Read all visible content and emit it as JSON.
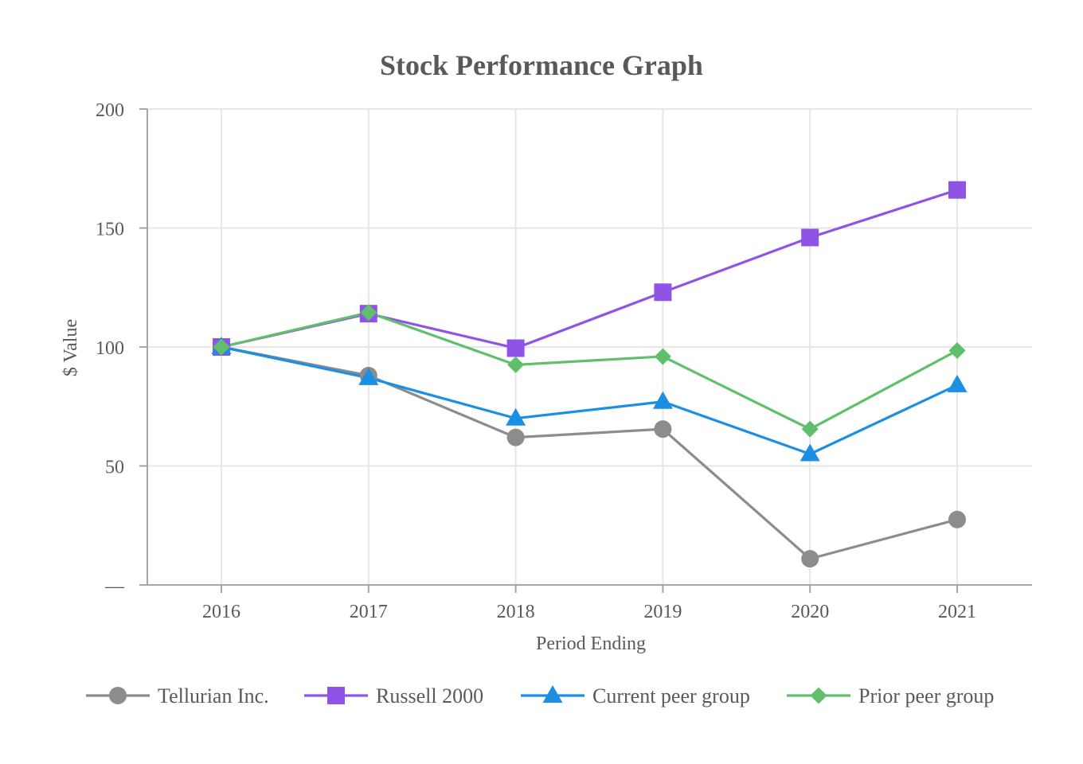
{
  "chart_data": {
    "type": "line",
    "title": "Stock Performance Graph",
    "xlabel": "Period Ending",
    "ylabel": "$ Value",
    "categories": [
      "2016",
      "2017",
      "2018",
      "2019",
      "2020",
      "2021"
    ],
    "y_ticks": [
      {
        "value": 0,
        "label": "—"
      },
      {
        "value": 50,
        "label": "50"
      },
      {
        "value": 100,
        "label": "100"
      },
      {
        "value": 150,
        "label": "150"
      },
      {
        "value": 200,
        "label": "200"
      }
    ],
    "ylim": [
      0,
      200
    ],
    "grid": true,
    "legend_position": "bottom",
    "series": [
      {
        "name": "Tellurian Inc.",
        "marker": "circle",
        "color": "#8c8c8c",
        "values": [
          100,
          88,
          62,
          65.5,
          11,
          27.5
        ]
      },
      {
        "name": "Russell 2000",
        "marker": "square",
        "color": "#8f54e6",
        "values": [
          100,
          114,
          99.5,
          123,
          146,
          166
        ]
      },
      {
        "name": "Current peer group",
        "marker": "triangle",
        "color": "#1a8fe3",
        "values": [
          100,
          87,
          70,
          77,
          55,
          84
        ]
      },
      {
        "name": "Prior peer group",
        "marker": "diamond",
        "color": "#5fbf6a",
        "values": [
          100,
          114.5,
          92.5,
          96,
          65.5,
          98.5
        ]
      }
    ]
  }
}
